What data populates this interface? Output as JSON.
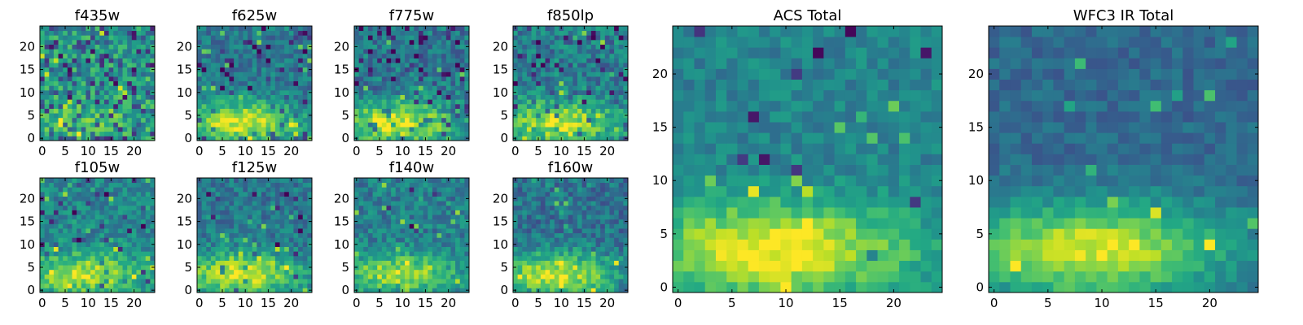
{
  "chart_data": [
    {
      "type": "heatmap",
      "title": "f435w",
      "x_ticks": [
        0,
        5,
        10,
        15,
        20
      ],
      "y_ticks": [
        0,
        5,
        10,
        15,
        20
      ],
      "xlim": [
        -0.5,
        24.5
      ],
      "ylim": [
        -0.5,
        24.5
      ],
      "grid": false,
      "colormap": "viridis",
      "seed": 101,
      "profile": {
        "base": 0.55,
        "band": 0.15,
        "noise": 0.38,
        "flow": 0.22,
        "fhigh": 0.65
      }
    },
    {
      "type": "heatmap",
      "title": "f625w",
      "x_ticks": [
        0,
        5,
        10,
        15,
        20
      ],
      "y_ticks": [
        0,
        5,
        10,
        15,
        20
      ],
      "xlim": [
        -0.5,
        24.5
      ],
      "ylim": [
        -0.5,
        24.5
      ],
      "grid": false,
      "colormap": "viridis",
      "seed": 202,
      "profile": {
        "base": 0.4,
        "band": 0.55,
        "noise": 0.28,
        "flow": 0.1,
        "fhigh": 0.5
      }
    },
    {
      "type": "heatmap",
      "title": "f775w",
      "x_ticks": [
        0,
        5,
        10,
        15,
        20
      ],
      "y_ticks": [
        0,
        5,
        10,
        15,
        20
      ],
      "xlim": [
        -0.5,
        24.5
      ],
      "ylim": [
        -0.5,
        24.5
      ],
      "grid": false,
      "colormap": "viridis",
      "seed": 303,
      "profile": {
        "base": 0.4,
        "band": 0.55,
        "noise": 0.32,
        "flow": 0.1,
        "fhigh": 0.5
      }
    },
    {
      "type": "heatmap",
      "title": "f850lp",
      "x_ticks": [
        0,
        5,
        10,
        15,
        20
      ],
      "y_ticks": [
        0,
        5,
        10,
        15,
        20
      ],
      "xlim": [
        -0.5,
        24.5
      ],
      "ylim": [
        -0.5,
        24.5
      ],
      "grid": false,
      "colormap": "viridis",
      "seed": 404,
      "profile": {
        "base": 0.42,
        "band": 0.5,
        "noise": 0.34,
        "flow": 0.1,
        "fhigh": 0.5
      }
    },
    {
      "type": "heatmap",
      "title": "f105w",
      "x_ticks": [
        0,
        5,
        10,
        15,
        20
      ],
      "y_ticks": [
        0,
        5,
        10,
        15,
        20
      ],
      "xlim": [
        -0.5,
        24.5
      ],
      "ylim": [
        -0.5,
        24.5
      ],
      "grid": false,
      "colormap": "viridis",
      "seed": 505,
      "profile": {
        "base": 0.45,
        "band": 0.45,
        "noise": 0.3,
        "flow": 0.05,
        "fhigh": 0.7
      }
    },
    {
      "type": "heatmap",
      "title": "f125w",
      "x_ticks": [
        0,
        5,
        10,
        15,
        20
      ],
      "y_ticks": [
        0,
        5,
        10,
        15,
        20
      ],
      "xlim": [
        -0.5,
        24.5
      ],
      "ylim": [
        -0.5,
        24.5
      ],
      "grid": false,
      "colormap": "viridis",
      "seed": 606,
      "profile": {
        "base": 0.4,
        "band": 0.55,
        "noise": 0.28,
        "flow": 0.02,
        "fhigh": 0.45
      }
    },
    {
      "type": "heatmap",
      "title": "f140w",
      "x_ticks": [
        0,
        5,
        10,
        15,
        20
      ],
      "y_ticks": [
        0,
        5,
        10,
        15,
        20
      ],
      "xlim": [
        -0.5,
        24.5
      ],
      "ylim": [
        -0.5,
        24.5
      ],
      "grid": false,
      "colormap": "viridis",
      "seed": 707,
      "profile": {
        "base": 0.42,
        "band": 0.45,
        "noise": 0.3,
        "flow": 0.02,
        "fhigh": 0.5
      }
    },
    {
      "type": "heatmap",
      "title": "f160w",
      "x_ticks": [
        0,
        5,
        10,
        15,
        20
      ],
      "y_ticks": [
        0,
        5,
        10,
        15,
        20
      ],
      "xlim": [
        -0.5,
        24.5
      ],
      "ylim": [
        -0.5,
        24.5
      ],
      "grid": false,
      "colormap": "viridis",
      "seed": 808,
      "profile": {
        "base": 0.38,
        "band": 0.55,
        "noise": 0.3,
        "flow": 0.0,
        "fhigh": 0.35
      }
    },
    {
      "type": "heatmap",
      "title": "ACS Total",
      "x_ticks": [
        0,
        5,
        10,
        15,
        20
      ],
      "y_ticks": [
        0,
        5,
        10,
        15,
        20
      ],
      "xlim": [
        -0.5,
        24.5
      ],
      "ylim": [
        -0.5,
        24.5
      ],
      "grid": false,
      "colormap": "viridis",
      "seed": 909,
      "profile": {
        "base": 0.45,
        "band": 0.55,
        "noise": 0.2,
        "flow": 0.02,
        "fhigh": 0.4
      }
    },
    {
      "type": "heatmap",
      "title": "WFC3 IR Total",
      "x_ticks": [
        0,
        5,
        10,
        15,
        20
      ],
      "y_ticks": [
        0,
        5,
        10,
        15,
        20
      ],
      "xlim": [
        -0.5,
        24.5
      ],
      "ylim": [
        -0.5,
        24.5
      ],
      "grid": false,
      "colormap": "viridis",
      "seed": 1010,
      "profile": {
        "base": 0.34,
        "band": 0.6,
        "noise": 0.17,
        "flow": 0.0,
        "fhigh": 0.3
      }
    }
  ]
}
